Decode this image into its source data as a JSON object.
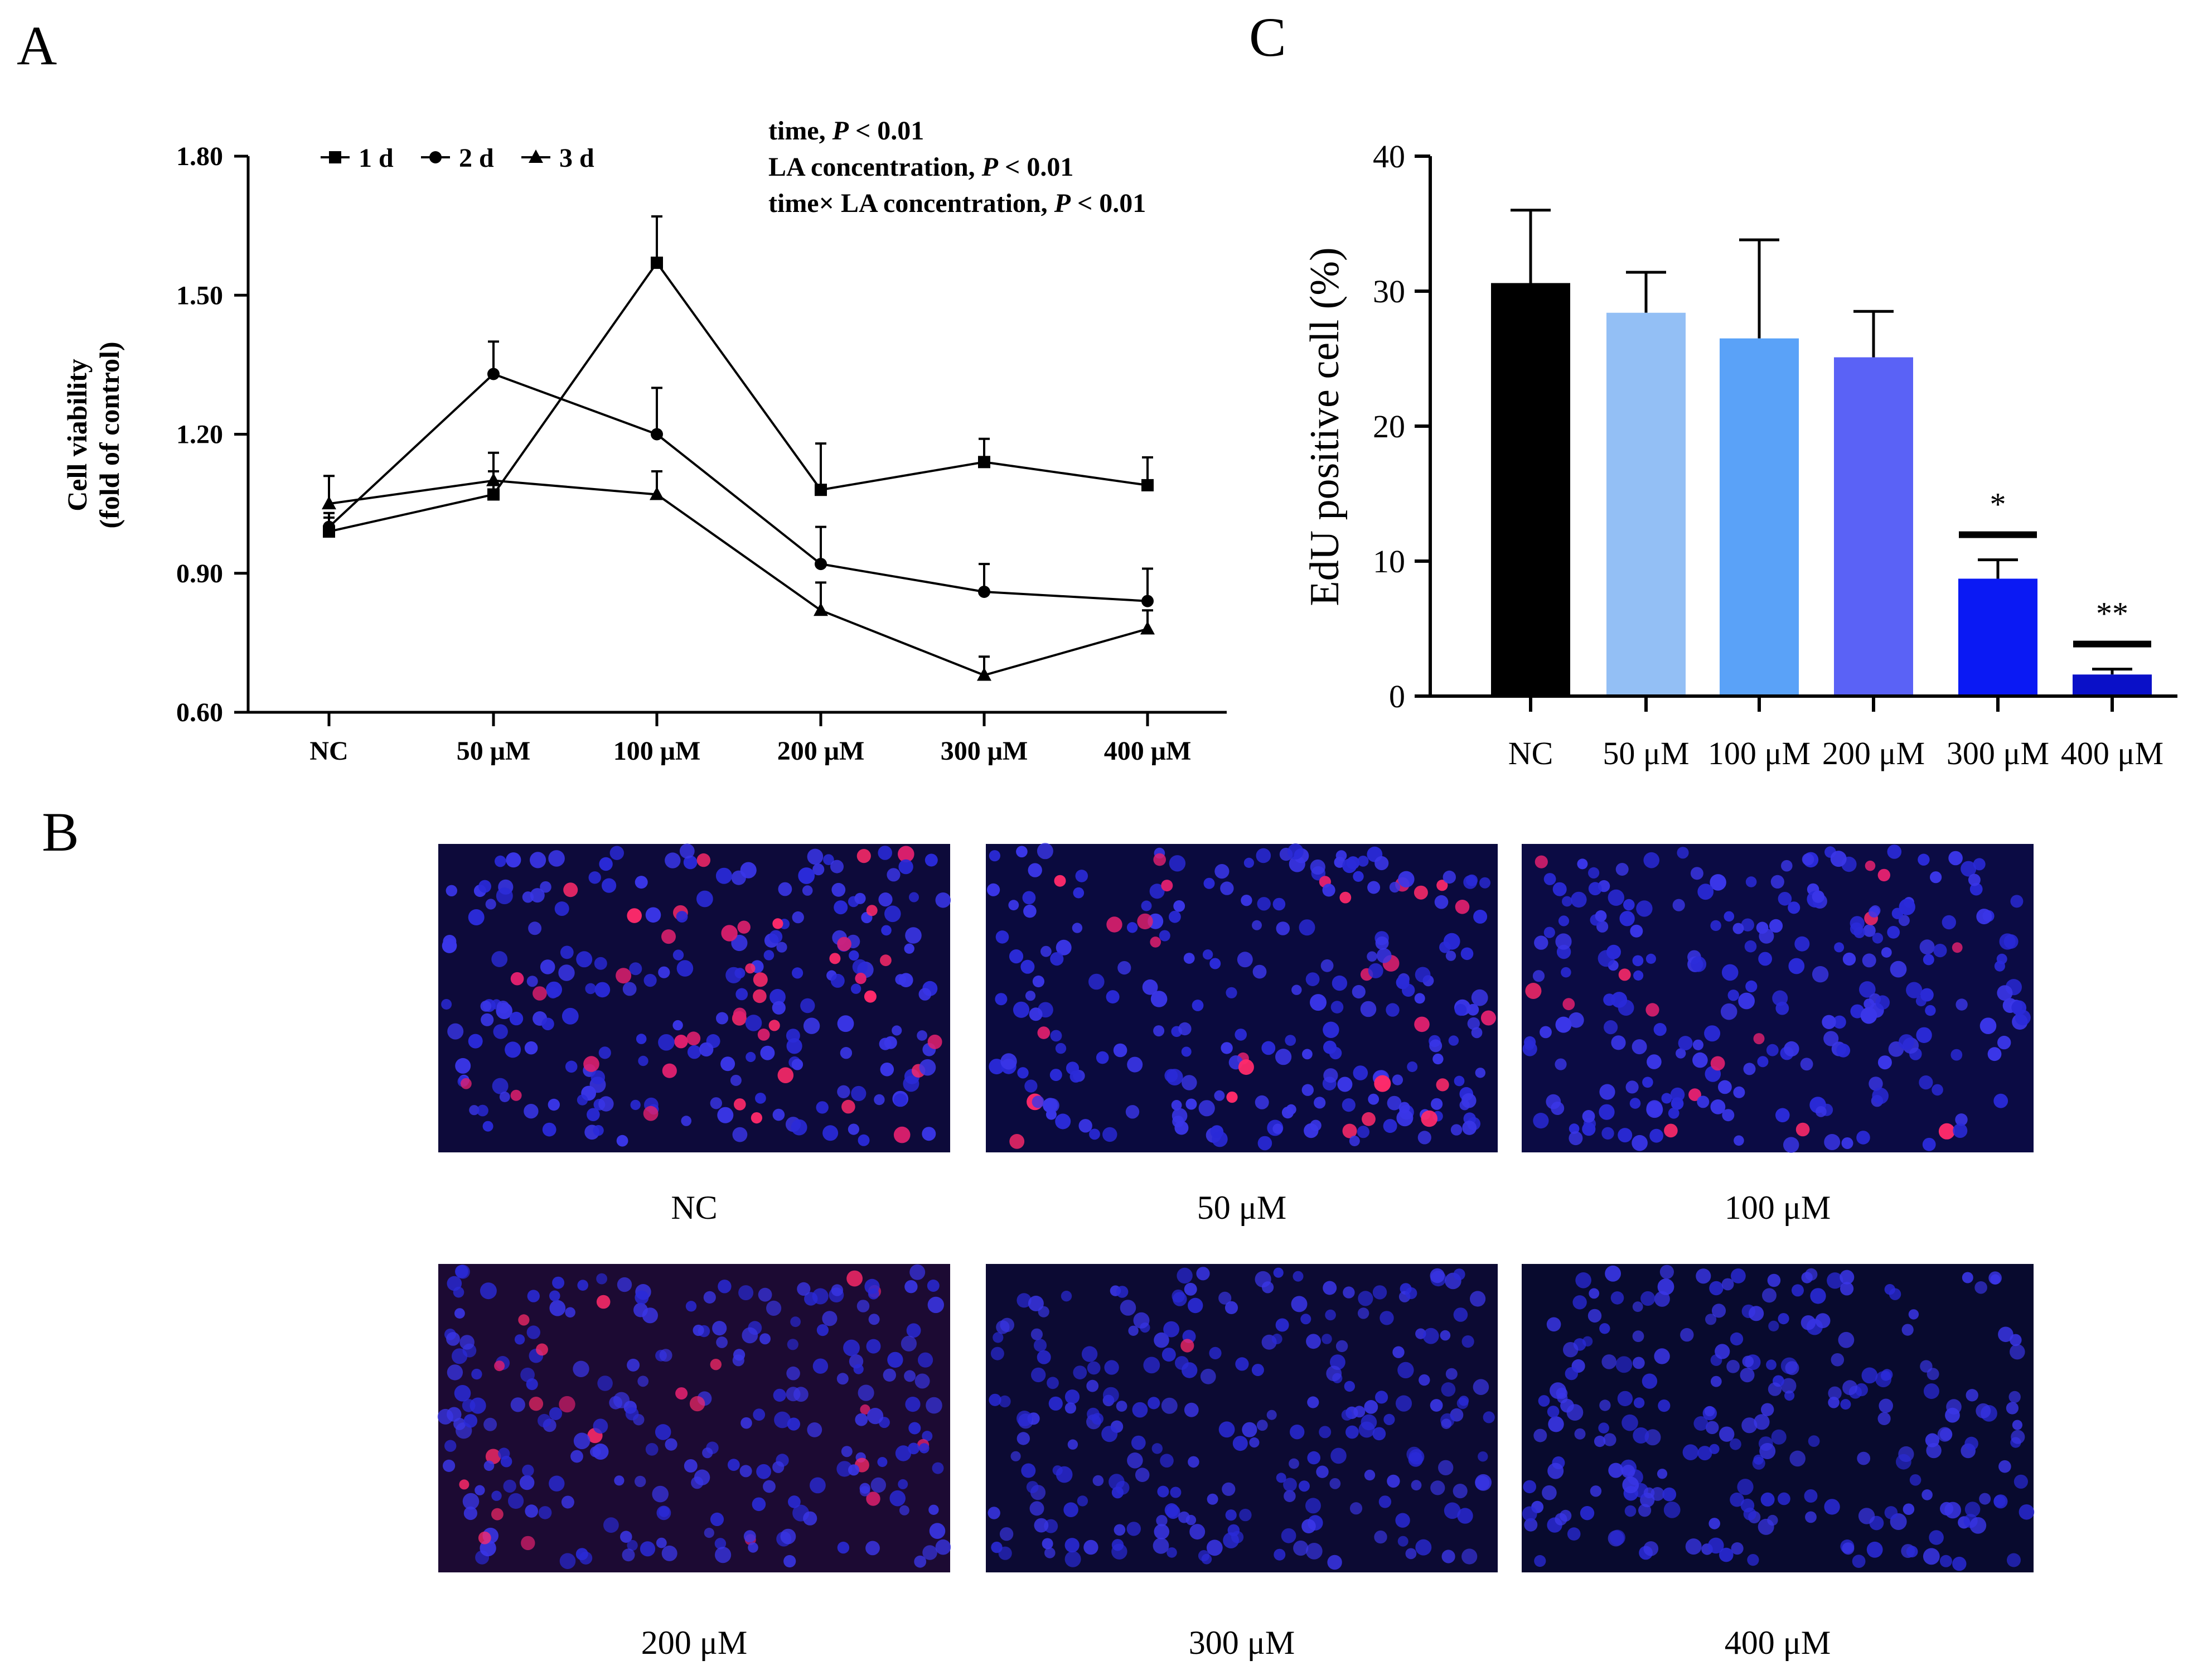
{
  "panels": {
    "a": "A",
    "b": "B",
    "c": "C"
  },
  "chart_data": [
    {
      "panel": "A",
      "type": "line",
      "categories": [
        "NC",
        "50 μM",
        "100 μM",
        "200 μM",
        "300 μM",
        "400 μM"
      ],
      "ylabel": [
        "Cell viability",
        "(fold of control)"
      ],
      "ylim": [
        0.6,
        1.8
      ],
      "yticks": [
        "0.60",
        "0.90",
        "1.20",
        "1.50",
        "1.80"
      ],
      "series": [
        {
          "name": "1 d",
          "marker": "square",
          "values": [
            0.99,
            1.07,
            1.57,
            1.08,
            1.14,
            1.09
          ],
          "err": [
            0.03,
            0.05,
            0.1,
            0.1,
            0.05,
            0.06
          ]
        },
        {
          "name": "2 d",
          "marker": "circle",
          "values": [
            1.0,
            1.33,
            1.2,
            0.92,
            0.86,
            0.84
          ],
          "err": [
            0.03,
            0.07,
            0.1,
            0.08,
            0.06,
            0.07
          ]
        },
        {
          "name": "3 d",
          "marker": "triangle",
          "values": [
            1.05,
            1.1,
            1.07,
            0.82,
            0.68,
            0.78
          ],
          "err": [
            0.06,
            0.06,
            0.05,
            0.06,
            0.04,
            0.04
          ]
        }
      ],
      "stats": [
        {
          "label": "time, ",
          "p": "P",
          "rest": " < 0.01"
        },
        {
          "label": "LA concentration, ",
          "p": "P",
          "rest": " < 0.01"
        },
        {
          "label": "time× LA concentration, ",
          "p": "P",
          "rest": " < 0.01"
        }
      ],
      "legend": "top-left",
      "grid": false
    },
    {
      "panel": "C",
      "type": "bar",
      "categories": [
        "NC",
        "50 μM",
        "100 μM",
        "200 μM",
        "300 μM",
        "400 μM"
      ],
      "values": [
        30.6,
        28.4,
        26.5,
        25.1,
        8.7,
        1.6
      ],
      "err": [
        5.4,
        3.0,
        7.3,
        3.4,
        1.4,
        0.4
      ],
      "colors": [
        "#000000",
        "#93bff5",
        "#5aa2f8",
        "#5a62f6",
        "#0a19f4",
        "#0a10c8"
      ],
      "significance": [
        "",
        "",
        "",
        "",
        "*",
        "**"
      ],
      "ylabel": "EdU positive cell (%)",
      "ylim": [
        0,
        40
      ],
      "yticks": [
        "0",
        "10",
        "20",
        "30",
        "40"
      ],
      "grid": false
    }
  ],
  "micrographs": {
    "labels": [
      "NC",
      "50 μM",
      "100 μM",
      "200 μM",
      "300 μM",
      "400 μM"
    ],
    "red_density": [
      1.0,
      0.8,
      0.55,
      0.45,
      0.1,
      0.0
    ]
  }
}
